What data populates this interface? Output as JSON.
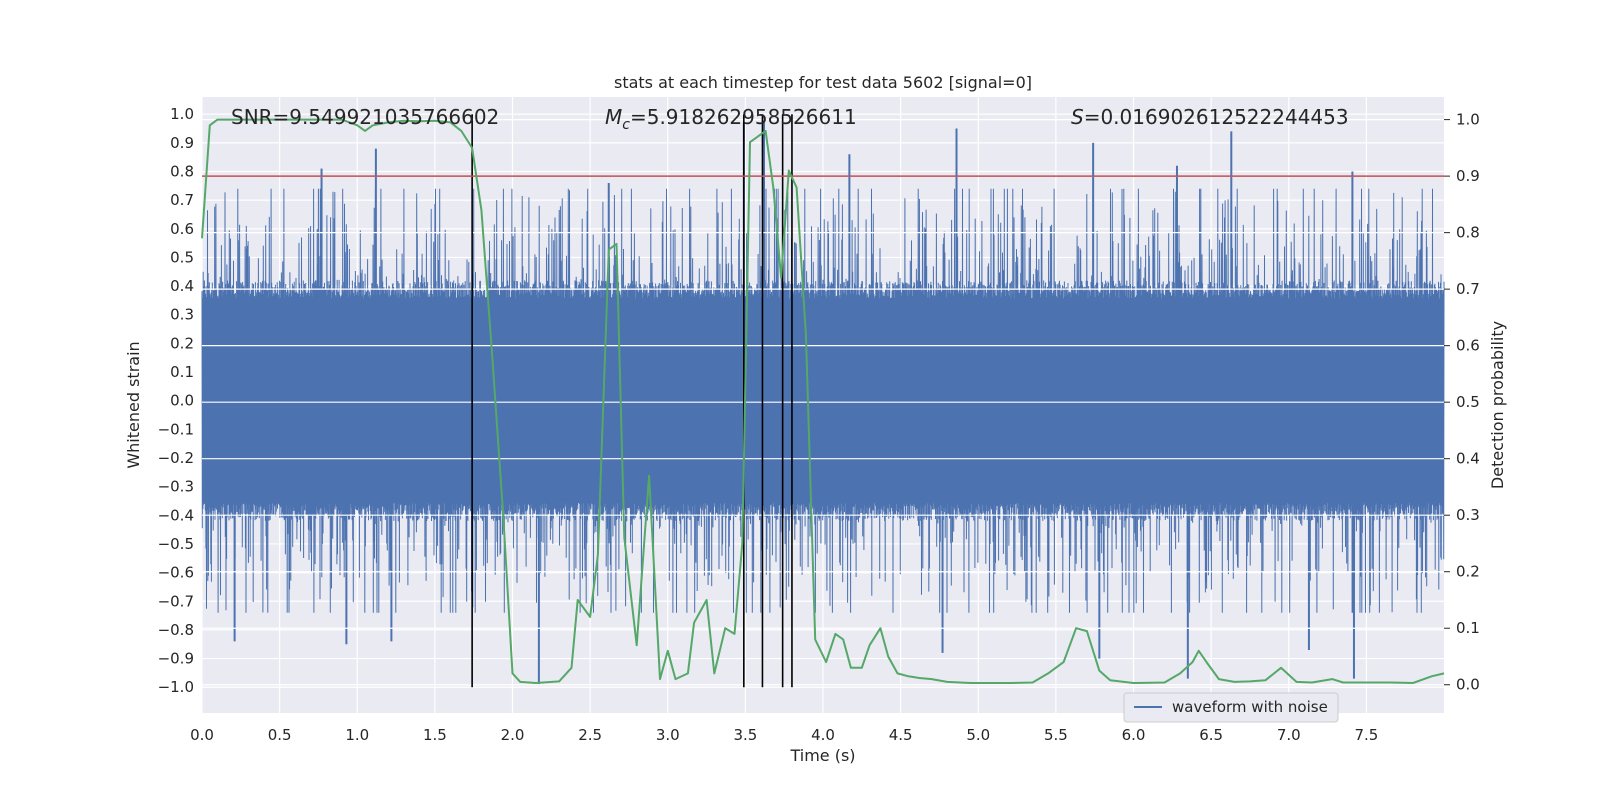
{
  "chart_data": {
    "type": "line",
    "title": "stats at each timestep for test data 5602 [signal=0]",
    "xlabel": "Time (s)",
    "ylabel_left": "Whitened strain",
    "ylabel_right": "Detection probability",
    "xlim": [
      0.0,
      8.0
    ],
    "ylim_left": [
      -1.09,
      1.06
    ],
    "ylim_right": [
      -0.05,
      1.04
    ],
    "x_ticks": [
      "0.0",
      "0.5",
      "1.0",
      "1.5",
      "2.0",
      "2.5",
      "3.0",
      "3.5",
      "4.0",
      "4.5",
      "5.0",
      "5.5",
      "6.0",
      "6.5",
      "7.0",
      "7.5"
    ],
    "left_ticks": [
      "1.0",
      "0.9",
      "0.8",
      "0.7",
      "0.6",
      "0.5",
      "0.4",
      "0.3",
      "0.2",
      "0.1",
      "0.0",
      "−0.1",
      "−0.2",
      "−0.3",
      "−0.4",
      "−0.5",
      "−0.6",
      "−0.7",
      "−0.8",
      "−0.9",
      "−1.0"
    ],
    "right_ticks": [
      "1.0",
      "0.9",
      "0.8",
      "0.7",
      "0.6",
      "0.5",
      "0.4",
      "0.3",
      "0.2",
      "0.1",
      "0.0"
    ],
    "grid": true,
    "legend_position": "lower-right",
    "annotations": {
      "snr": "SNR=9.549921035766602",
      "mc_symbol": "M",
      "mc_sub": "c",
      "mc_value": "=5.918262958526611",
      "s_symbol": "S",
      "s_value": "=0.016902612522244453"
    },
    "series": [
      {
        "name": "waveform with noise",
        "axis": "left",
        "kind": "dense-noise",
        "color": "#4c72b0",
        "sample_rate_hz": 512,
        "core_amplitude": 0.42,
        "peaks": [
          {
            "x": 1.12,
            "y": 0.88
          },
          {
            "x": 0.77,
            "y": 0.81
          },
          {
            "x": 2.62,
            "y": 0.76
          },
          {
            "x": 3.49,
            "y": 0.97
          },
          {
            "x": 3.62,
            "y": 0.97
          },
          {
            "x": 4.17,
            "y": 0.86
          },
          {
            "x": 4.86,
            "y": 0.95
          },
          {
            "x": 5.74,
            "y": 0.9
          },
          {
            "x": 6.28,
            "y": 0.82
          },
          {
            "x": 6.63,
            "y": 0.94
          },
          {
            "x": 7.41,
            "y": 0.8
          },
          {
            "x": 2.17,
            "y": -0.99
          },
          {
            "x": 6.35,
            "y": -0.97
          },
          {
            "x": 7.42,
            "y": -0.97
          },
          {
            "x": 0.21,
            "y": -0.84
          },
          {
            "x": 0.93,
            "y": -0.85
          },
          {
            "x": 1.22,
            "y": -0.84
          },
          {
            "x": 4.77,
            "y": -0.88
          },
          {
            "x": 5.78,
            "y": -0.9
          },
          {
            "x": 7.13,
            "y": -0.87
          }
        ]
      },
      {
        "name": "Detection probability",
        "axis": "right",
        "color": "#55a868",
        "x": [
          0.0,
          0.05,
          0.1,
          0.2,
          0.5,
          0.9,
          1.0,
          1.05,
          1.1,
          1.2,
          1.3,
          1.4,
          1.5,
          1.6,
          1.67,
          1.74,
          1.8,
          1.87,
          1.94,
          2.0,
          2.05,
          2.15,
          2.3,
          2.38,
          2.42,
          2.5,
          2.55,
          2.62,
          2.67,
          2.72,
          2.8,
          2.88,
          2.95,
          3.0,
          3.05,
          3.13,
          3.17,
          3.25,
          3.3,
          3.37,
          3.43,
          3.48,
          3.53,
          3.58,
          3.63,
          3.68,
          3.73,
          3.78,
          3.83,
          3.89,
          3.95,
          4.02,
          4.08,
          4.13,
          4.18,
          4.25,
          4.3,
          4.37,
          4.42,
          4.48,
          4.55,
          4.62,
          4.7,
          4.8,
          4.95,
          5.2,
          5.35,
          5.45,
          5.55,
          5.63,
          5.7,
          5.78,
          5.85,
          6.0,
          6.2,
          6.3,
          6.38,
          6.42,
          6.47,
          6.55,
          6.65,
          6.75,
          6.85,
          6.95,
          7.05,
          7.15,
          7.28,
          7.35,
          7.5,
          7.65,
          7.8,
          7.92,
          8.0
        ],
        "y": [
          0.79,
          0.99,
          1.0,
          1.0,
          1.0,
          1.0,
          0.99,
          0.98,
          0.99,
          0.995,
          0.998,
          0.997,
          0.998,
          0.995,
          0.98,
          0.95,
          0.84,
          0.58,
          0.3,
          0.02,
          0.005,
          0.003,
          0.006,
          0.03,
          0.15,
          0.12,
          0.23,
          0.77,
          0.78,
          0.26,
          0.07,
          0.37,
          0.01,
          0.06,
          0.01,
          0.02,
          0.11,
          0.15,
          0.02,
          0.1,
          0.09,
          0.25,
          0.96,
          0.97,
          0.98,
          0.88,
          0.72,
          0.91,
          0.88,
          0.62,
          0.08,
          0.04,
          0.09,
          0.08,
          0.03,
          0.03,
          0.07,
          0.1,
          0.05,
          0.02,
          0.015,
          0.012,
          0.01,
          0.005,
          0.003,
          0.003,
          0.004,
          0.02,
          0.04,
          0.1,
          0.095,
          0.025,
          0.008,
          0.003,
          0.004,
          0.02,
          0.04,
          0.06,
          0.04,
          0.01,
          0.005,
          0.006,
          0.008,
          0.03,
          0.005,
          0.004,
          0.01,
          0.004,
          0.004,
          0.004,
          0.003,
          0.015,
          0.02
        ]
      }
    ],
    "threshold": {
      "axis": "right",
      "y": 0.9,
      "color": "#c44e52"
    },
    "vertical_markers": {
      "x": [
        1.74,
        3.49,
        3.61,
        3.74,
        3.8
      ],
      "y_top": 1.0,
      "y_bottom": -1.0,
      "color": "#000000"
    }
  }
}
